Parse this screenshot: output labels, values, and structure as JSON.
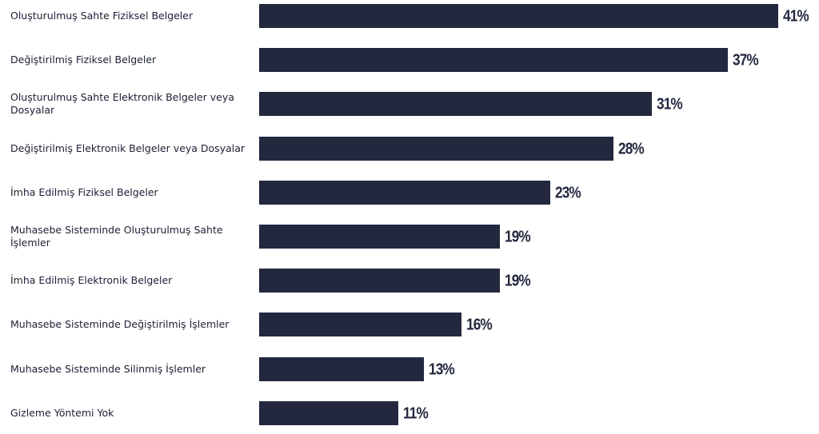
{
  "chart_data": {
    "type": "bar",
    "orientation": "horizontal",
    "categories": [
      "Oluşturulmuş Sahte Fiziksel Belgeler",
      "Değiştirilmiş Fiziksel Belgeler",
      "Oluşturulmuş Sahte Elektronik Belgeler veya Dosyalar",
      "Değiştirilmiş Elektronik Belgeler veya Dosyalar",
      "İmha Edilmiş Fiziksel Belgeler",
      "Muhasebe Sisteminde Oluşturulmuş Sahte İşlemler",
      "İmha Edilmiş Elektronik Belgeler",
      "Muhasebe Sisteminde Değiştirilmiş İşlemler",
      "Muhasebe Sisteminde Silinmiş İşlemler",
      "Gizleme Yöntemi Yok"
    ],
    "values": [
      41,
      37,
      31,
      28,
      23,
      19,
      19,
      16,
      13,
      11
    ],
    "value_labels": [
      "41%",
      "37%",
      "31%",
      "28%",
      "23%",
      "19%",
      "19%",
      "16%",
      "13%",
      "11%"
    ],
    "unit": "%",
    "xlim": [
      0,
      41
    ],
    "grid": false,
    "legend": "none",
    "bar_color": "#23283f",
    "text_color": "#1b1f33"
  }
}
